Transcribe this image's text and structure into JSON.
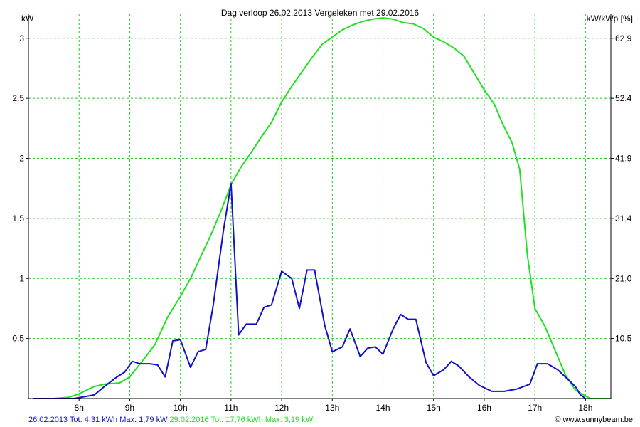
{
  "header": {
    "title": "Dag  verloop 26.02.2013   Vergeleken met 29.02.2016",
    "ylabel_left": "kW",
    "ylabel_right": "kW/kWp [%]"
  },
  "footer": {
    "series1_text": "26.02.2013 Tot: 4,31 kWh Max: 1,79 kW",
    "series2_text": "29.02.2016 Tot: 17,76 kWh Max: 3,19 kW",
    "copyright": "© www.sunnybeam.be"
  },
  "colors": {
    "series1": "#1010c8",
    "series2": "#22e022",
    "grid": "#22cc22",
    "axis": "#000000"
  },
  "chart_data": {
    "type": "line",
    "xlabel": "",
    "ylabel": "kW",
    "y2label": "kW/kWp [%]",
    "xlim": [
      7.0,
      18.5
    ],
    "ylim": [
      0,
      3.2
    ],
    "grid": true,
    "x_ticks": [
      8,
      9,
      10,
      11,
      12,
      13,
      14,
      15,
      16,
      17,
      18
    ],
    "x_tick_labels": [
      "8h",
      "9h",
      "10h",
      "11h",
      "12h",
      "13h",
      "14h",
      "15h",
      "16h",
      "17h",
      "18h"
    ],
    "y_ticks": [
      0.5,
      1,
      1.5,
      2,
      2.5,
      3
    ],
    "y_tick_labels": [
      "0.5",
      "1",
      "1.5",
      "2",
      "2.5",
      "3"
    ],
    "y2_tick_labels": [
      "10,5",
      "21,0",
      "31,4",
      "41,9",
      "52,4",
      "62,9"
    ],
    "series": [
      {
        "name": "26.02.2013",
        "color": "#1010c8",
        "points": [
          [
            7.1,
            0
          ],
          [
            7.5,
            0
          ],
          [
            7.9,
            0
          ],
          [
            8.3,
            0.03
          ],
          [
            8.5,
            0.1
          ],
          [
            8.75,
            0.18
          ],
          [
            8.9,
            0.22
          ],
          [
            9.05,
            0.31
          ],
          [
            9.2,
            0.29
          ],
          [
            9.4,
            0.29
          ],
          [
            9.55,
            0.28
          ],
          [
            9.7,
            0.18
          ],
          [
            9.85,
            0.48
          ],
          [
            10.0,
            0.49
          ],
          [
            10.2,
            0.26
          ],
          [
            10.35,
            0.39
          ],
          [
            10.5,
            0.41
          ],
          [
            10.65,
            0.78
          ],
          [
            10.85,
            1.4
          ],
          [
            11.0,
            1.79
          ],
          [
            11.15,
            0.53
          ],
          [
            11.3,
            0.62
          ],
          [
            11.5,
            0.62
          ],
          [
            11.65,
            0.76
          ],
          [
            11.8,
            0.78
          ],
          [
            12.0,
            1.06
          ],
          [
            12.2,
            1.0
          ],
          [
            12.35,
            0.75
          ],
          [
            12.5,
            1.07
          ],
          [
            12.65,
            1.07
          ],
          [
            12.85,
            0.61
          ],
          [
            13.0,
            0.39
          ],
          [
            13.2,
            0.43
          ],
          [
            13.35,
            0.58
          ],
          [
            13.55,
            0.35
          ],
          [
            13.7,
            0.42
          ],
          [
            13.85,
            0.43
          ],
          [
            14.0,
            0.37
          ],
          [
            14.2,
            0.58
          ],
          [
            14.35,
            0.7
          ],
          [
            14.5,
            0.66
          ],
          [
            14.65,
            0.66
          ],
          [
            14.85,
            0.3
          ],
          [
            15.0,
            0.19
          ],
          [
            15.2,
            0.24
          ],
          [
            15.35,
            0.31
          ],
          [
            15.5,
            0.27
          ],
          [
            15.7,
            0.18
          ],
          [
            15.9,
            0.11
          ],
          [
            16.15,
            0.06
          ],
          [
            16.4,
            0.06
          ],
          [
            16.65,
            0.08
          ],
          [
            16.9,
            0.12
          ],
          [
            17.05,
            0.29
          ],
          [
            17.25,
            0.29
          ],
          [
            17.45,
            0.24
          ],
          [
            17.65,
            0.16
          ],
          [
            17.8,
            0.1
          ],
          [
            17.9,
            0.03
          ],
          [
            18.0,
            0
          ]
        ]
      },
      {
        "name": "29.02.2016",
        "color": "#22e022",
        "points": [
          [
            7.1,
            0
          ],
          [
            7.5,
            0
          ],
          [
            7.8,
            0.01
          ],
          [
            8.0,
            0.04
          ],
          [
            8.3,
            0.1
          ],
          [
            8.5,
            0.12
          ],
          [
            8.8,
            0.13
          ],
          [
            9.0,
            0.18
          ],
          [
            9.3,
            0.34
          ],
          [
            9.5,
            0.45
          ],
          [
            9.75,
            0.68
          ],
          [
            10.0,
            0.85
          ],
          [
            10.2,
            1.0
          ],
          [
            10.4,
            1.18
          ],
          [
            10.6,
            1.36
          ],
          [
            10.8,
            1.56
          ],
          [
            11.0,
            1.78
          ],
          [
            11.2,
            1.93
          ],
          [
            11.4,
            2.05
          ],
          [
            11.6,
            2.18
          ],
          [
            11.8,
            2.3
          ],
          [
            12.0,
            2.47
          ],
          [
            12.2,
            2.6
          ],
          [
            12.4,
            2.72
          ],
          [
            12.6,
            2.84
          ],
          [
            12.8,
            2.95
          ],
          [
            13.0,
            3.01
          ],
          [
            13.2,
            3.07
          ],
          [
            13.4,
            3.11
          ],
          [
            13.6,
            3.14
          ],
          [
            13.8,
            3.16
          ],
          [
            14.0,
            3.17
          ],
          [
            14.2,
            3.16
          ],
          [
            14.4,
            3.13
          ],
          [
            14.6,
            3.12
          ],
          [
            14.8,
            3.08
          ],
          [
            15.0,
            3.01
          ],
          [
            15.2,
            2.97
          ],
          [
            15.4,
            2.92
          ],
          [
            15.6,
            2.85
          ],
          [
            15.8,
            2.71
          ],
          [
            16.0,
            2.57
          ],
          [
            16.2,
            2.45
          ],
          [
            16.35,
            2.3
          ],
          [
            16.55,
            2.13
          ],
          [
            16.7,
            1.91
          ],
          [
            16.85,
            1.2
          ],
          [
            17.0,
            0.75
          ],
          [
            17.2,
            0.6
          ],
          [
            17.4,
            0.4
          ],
          [
            17.6,
            0.2
          ],
          [
            17.8,
            0.07
          ],
          [
            18.0,
            0.02
          ],
          [
            18.1,
            0
          ],
          [
            18.3,
            0
          ],
          [
            18.5,
            0
          ]
        ]
      }
    ]
  }
}
